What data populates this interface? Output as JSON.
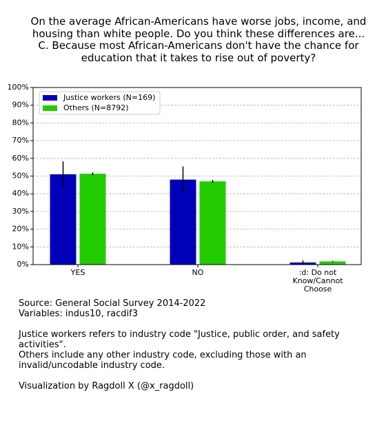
{
  "chart_data": {
    "type": "bar",
    "title": "On the average African-Americans have worse jobs, income, and housing than white people. Do you think these differences are... C. Because most African-Americans don't have the chance for education that it takes to rise out of poverty?",
    "categories": [
      "YES",
      "NO",
      ":d:  Do not Know/Cannot Choose"
    ],
    "series": [
      {
        "name": "Justice workers (N=169)",
        "color": "#0000b8",
        "values": [
          51,
          48,
          1.2
        ],
        "errors": [
          7.3,
          7.4,
          1.2
        ]
      },
      {
        "name": "Others (N=8792)",
        "color": "#22cc00",
        "values": [
          51.3,
          47,
          1.8
        ],
        "errors": [
          0.8,
          0.8,
          0.3
        ]
      }
    ],
    "ylim": [
      0,
      100
    ],
    "yticks": [
      {
        "value": 0,
        "label": "0%"
      },
      {
        "value": 10,
        "label": "10%"
      },
      {
        "value": 20,
        "label": "20%"
      },
      {
        "value": 30,
        "label": "30%"
      },
      {
        "value": 40,
        "label": "40%"
      },
      {
        "value": 50,
        "label": "50%"
      },
      {
        "value": 60,
        "label": "60%"
      },
      {
        "value": 70,
        "label": "70%"
      },
      {
        "value": 80,
        "label": "80%"
      },
      {
        "value": 90,
        "label": "90%"
      },
      {
        "value": 100,
        "label": "100%"
      }
    ],
    "grid": true,
    "legend": "upper left",
    "notes": [
      "Source: General Social Survey 2014-2022",
      "Variables: indus10, racdif3",
      "Justice workers refers to industry code \"Justice, public order, and safety activities\".",
      "Others include any other industry code, excluding those with an invalid/uncodable industry code.",
      "Visualization by Ragdoll X (@x_ragdoll)"
    ]
  }
}
